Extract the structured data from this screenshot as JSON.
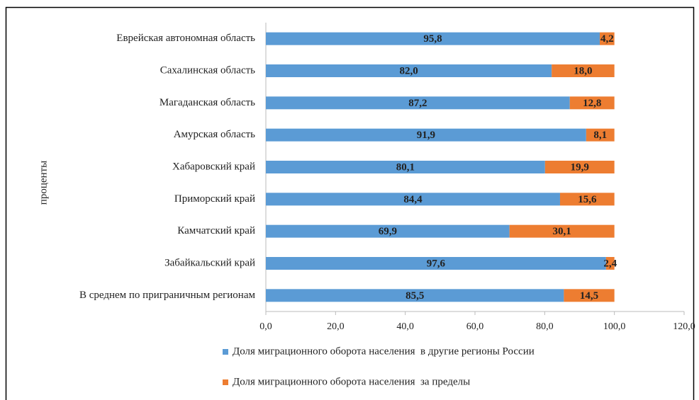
{
  "chart_data": {
    "type": "stacked_barh",
    "ylabel": "проценты",
    "categories": [
      "Еврейская автономная область",
      "Сахалинская область",
      "Магаданская область",
      "Амурская область",
      "Хабаровский край",
      "Приморский край",
      "Камчатский край",
      "Забайкальский край",
      "В среднем по приграничным регионам"
    ],
    "series": [
      {
        "name": "Доля миграционного оборота населения  в другие регионы России",
        "color": "#5b9bd5",
        "values": [
          95.8,
          82.0,
          87.2,
          91.9,
          80.1,
          84.4,
          69.9,
          97.6,
          85.5
        ],
        "value_labels": [
          "95,8",
          "82,0",
          "87,2",
          "91,9",
          "80,1",
          "84,4",
          "69,9",
          "97,6",
          "85,5"
        ]
      },
      {
        "name": "Доля миграционного оборота населения  за пределы",
        "color": "#ed7d31",
        "values": [
          4.2,
          18.0,
          12.8,
          8.1,
          19.9,
          15.6,
          30.1,
          2.4,
          14.5
        ],
        "value_labels": [
          "4,2",
          "18,0",
          "12,8",
          "8,1",
          "19,9",
          "15,6",
          "30,1",
          "2,4",
          "14,5"
        ]
      }
    ],
    "xlim": [
      0,
      120
    ],
    "xticks": [
      {
        "value": 0,
        "label": "0,0"
      },
      {
        "value": 20,
        "label": "20,0"
      },
      {
        "value": 40,
        "label": "40,0"
      },
      {
        "value": 60,
        "label": "60,0"
      },
      {
        "value": 80,
        "label": "80,0"
      },
      {
        "value": 100,
        "label": "100,0"
      },
      {
        "value": 120,
        "label": "120,0"
      }
    ],
    "legend": "bottom"
  }
}
